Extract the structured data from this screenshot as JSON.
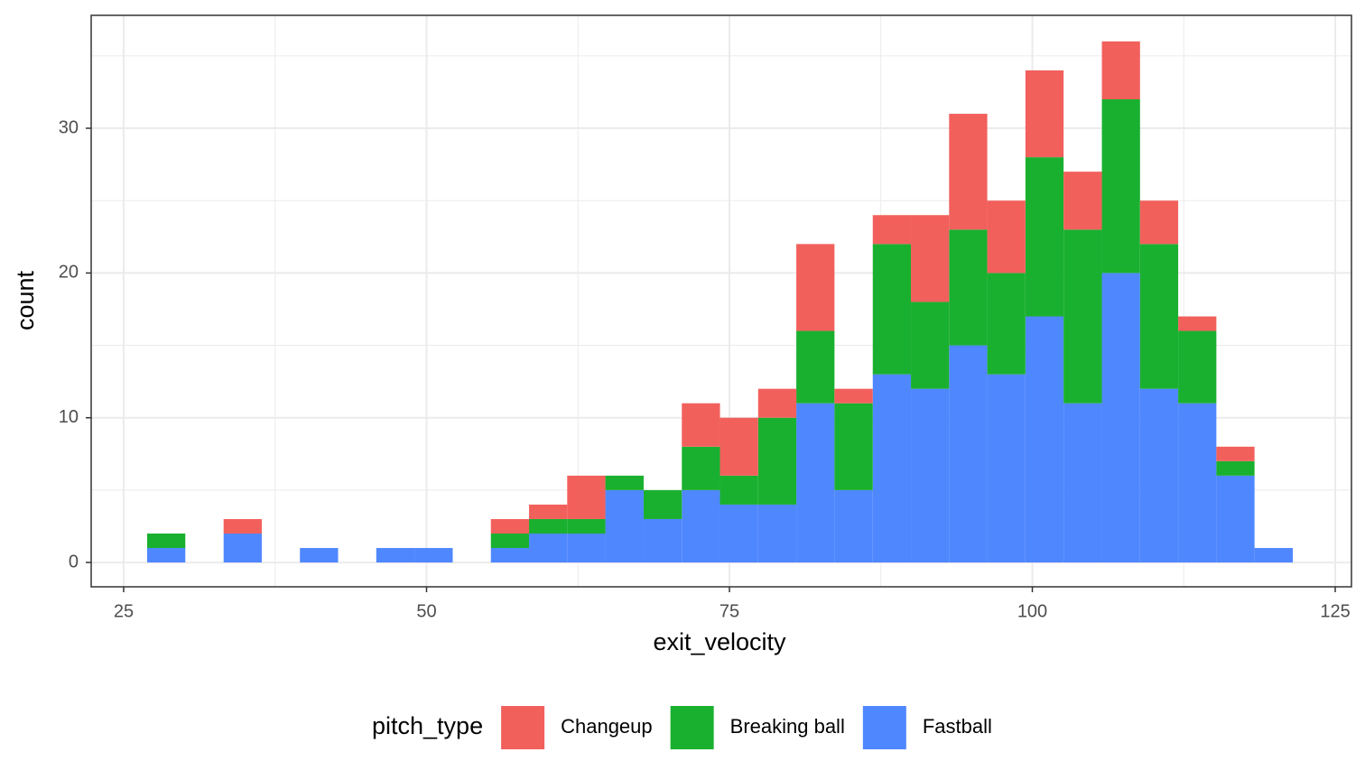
{
  "chart_data": {
    "type": "histogram",
    "stacked": true,
    "x_label": "exit_velocity",
    "y_label": "count",
    "bins": [
      26.94,
      30.09,
      33.25,
      36.4,
      39.55,
      42.7,
      45.85,
      49.0,
      52.16,
      55.31,
      58.46,
      61.61,
      64.76,
      67.92,
      71.07,
      74.22,
      77.37,
      80.52,
      83.67,
      86.83,
      89.98,
      93.13,
      96.28,
      99.43,
      102.58,
      105.74,
      108.89,
      112.04,
      115.19,
      118.34,
      121.5
    ],
    "series": [
      {
        "name": "Changeup",
        "color": "#F2605C",
        "values": [
          0,
          0,
          1,
          0,
          0,
          0,
          0,
          0,
          0,
          1,
          1,
          3,
          0,
          0,
          3,
          4,
          2,
          6,
          1,
          2,
          6,
          8,
          5,
          6,
          4,
          4,
          3,
          1,
          1,
          0
        ]
      },
      {
        "name": "Breaking ball",
        "color": "#1AB02F",
        "values": [
          1,
          0,
          0,
          0,
          0,
          0,
          0,
          0,
          0,
          1,
          1,
          1,
          1,
          2,
          3,
          2,
          6,
          5,
          6,
          9,
          6,
          8,
          7,
          11,
          12,
          12,
          10,
          5,
          1,
          0
        ]
      },
      {
        "name": "Fastball",
        "color": "#4F87FF",
        "values": [
          1,
          0,
          2,
          0,
          1,
          0,
          1,
          1,
          0,
          1,
          2,
          2,
          5,
          3,
          5,
          4,
          4,
          11,
          5,
          13,
          12,
          15,
          13,
          17,
          11,
          20,
          12,
          11,
          6,
          1
        ]
      }
    ],
    "legend_title": "pitch_type",
    "legend_position": "bottom",
    "xlim": [
      22.32,
      126.34
    ],
    "xticks": [
      25,
      50,
      75,
      100,
      125
    ],
    "ylim": [
      -1.68,
      37.8
    ],
    "yticks": [
      0,
      10,
      20,
      30
    ],
    "grid": true
  }
}
